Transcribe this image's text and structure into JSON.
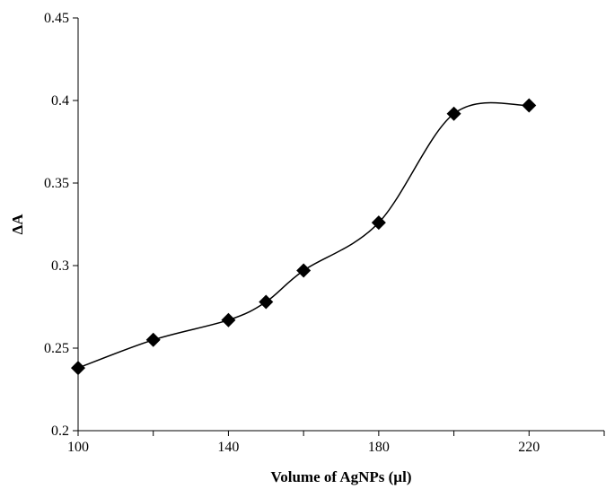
{
  "chart_data": {
    "type": "scatter",
    "title": "",
    "xlabel": "Volume of AgNPs (µl)",
    "ylabel": "ΔA",
    "xlim": [
      100,
      240
    ],
    "ylim": [
      0.2,
      0.45
    ],
    "xticks": [
      100,
      140,
      180,
      220
    ],
    "xtick_labels": [
      "100",
      "140",
      "180",
      "220"
    ],
    "yticks": [
      0.2,
      0.25,
      0.3,
      0.35,
      0.4,
      0.45
    ],
    "ytick_labels": [
      "0.2",
      "0.25",
      "0.3",
      "0.35",
      "0.4",
      "0.45"
    ],
    "grid": false,
    "legend": "none",
    "marker": "diamond",
    "line": "smooth",
    "series": [
      {
        "x": [
          100,
          120,
          140,
          150,
          160,
          180,
          200,
          220
        ],
        "y": [
          0.238,
          0.255,
          0.267,
          0.278,
          0.297,
          0.326,
          0.392,
          0.397
        ]
      }
    ]
  }
}
